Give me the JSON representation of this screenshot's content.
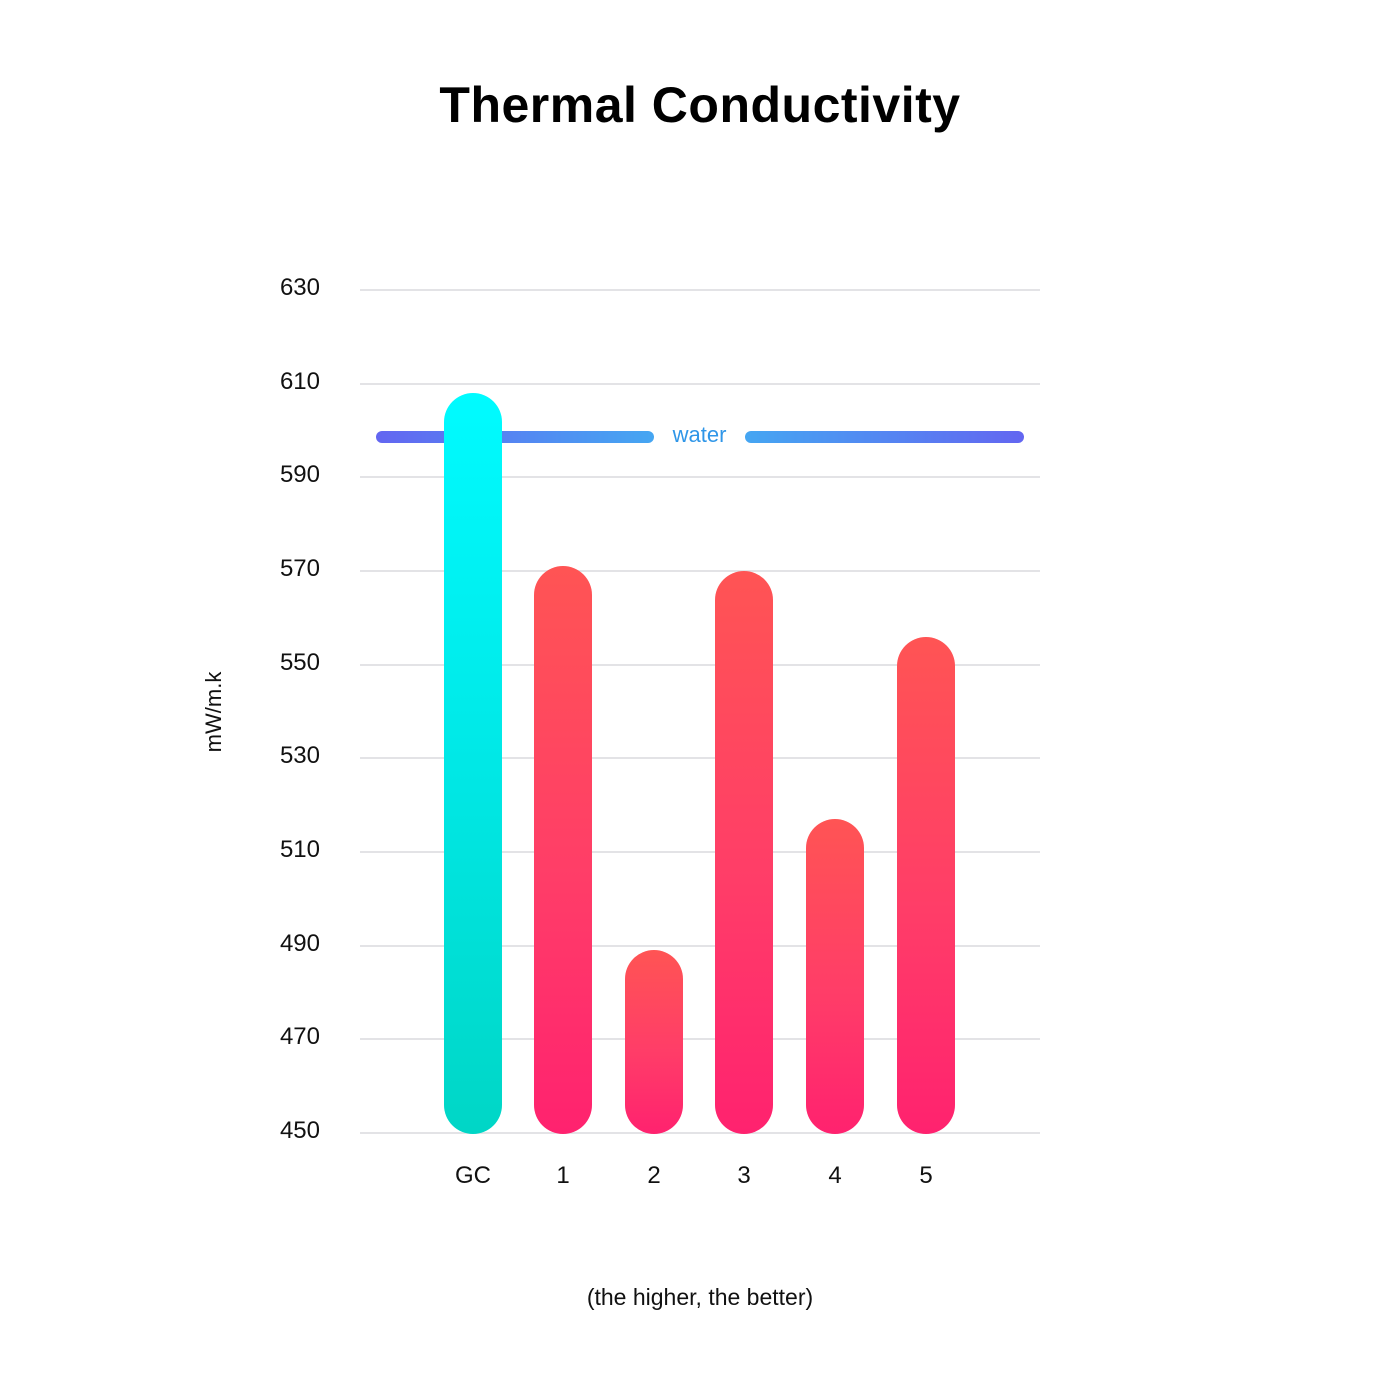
{
  "chart_data": {
    "type": "bar",
    "title": "Thermal Conductivity",
    "subtitle": "",
    "xlabel": "",
    "ylabel": "mW/m.k",
    "footnote": "(the higher, the better)",
    "categories": [
      "GC",
      "1",
      "2",
      "3",
      "4",
      "5"
    ],
    "values": [
      608,
      571,
      489,
      570,
      517,
      556
    ],
    "ylim": [
      450,
      630
    ],
    "yticks": [
      630,
      610,
      590,
      570,
      550,
      530,
      510,
      490,
      470,
      450
    ],
    "grid": true,
    "reference_line": {
      "label": "water",
      "value": 599,
      "color": "#45a6f2"
    },
    "colors": {
      "highlight": "#00f0f0",
      "others": "#ff3d68"
    },
    "legend": null
  },
  "header": {
    "title": "Thermal Conductivity"
  },
  "axis": {
    "ylabel": "mW/m.k",
    "yticks": [
      "630",
      "610",
      "590",
      "570",
      "550",
      "530",
      "510",
      "490",
      "470",
      "450"
    ],
    "xticks": [
      "GC",
      "1",
      "2",
      "3",
      "4",
      "5"
    ]
  },
  "reference": {
    "label": "water"
  },
  "footer": {
    "note": "(the higher, the better)"
  }
}
